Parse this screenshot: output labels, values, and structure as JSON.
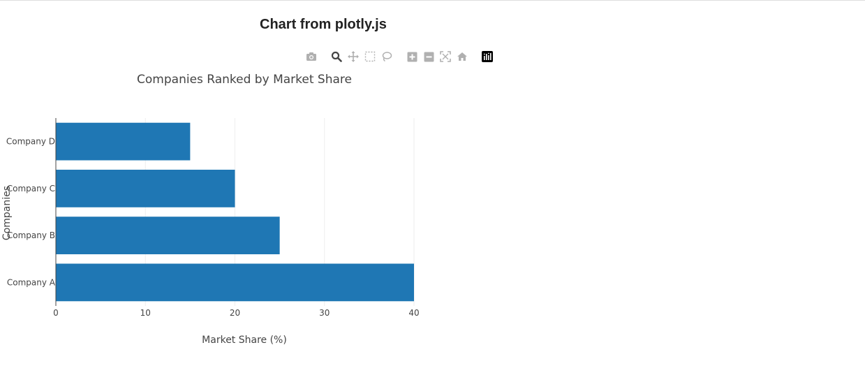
{
  "page": {
    "heading": "Chart from plotly.js"
  },
  "modebar": {
    "buttons": [
      "camera-icon",
      "zoom-icon",
      "pan-icon",
      "box-select-icon",
      "lasso-icon",
      "zoom-in-icon",
      "zoom-out-icon",
      "autoscale-icon",
      "reset-axes-icon",
      "plotly-logo-icon"
    ]
  },
  "chart_data": {
    "type": "bar",
    "orientation": "horizontal",
    "title": "Companies Ranked by Market Share",
    "xlabel": "Market Share (%)",
    "ylabel": "Companies",
    "categories": [
      "Company A",
      "Company B",
      "Company C",
      "Company D"
    ],
    "values": [
      40,
      25,
      20,
      15
    ],
    "xlim": [
      0,
      40
    ],
    "xticks": [
      0,
      10,
      20,
      30,
      40
    ],
    "grid": true,
    "bar_color": "#1f77b4"
  }
}
